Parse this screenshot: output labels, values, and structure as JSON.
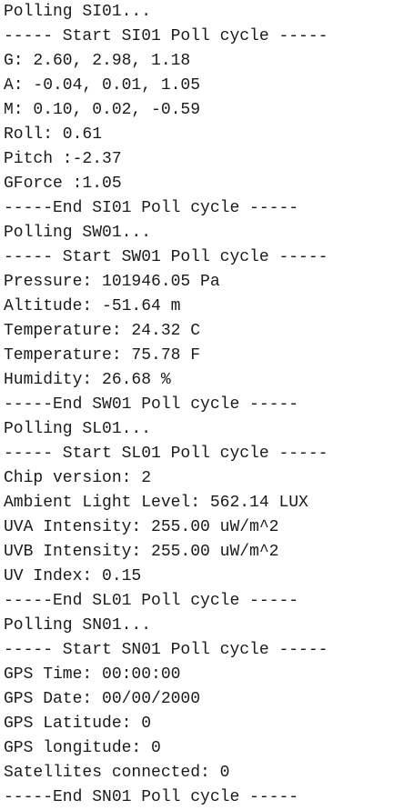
{
  "serial_monitor": {
    "lines": [
      "Polling SI01...",
      "----- Start SI01 Poll cycle -----",
      "G: 2.60, 2.98, 1.18",
      "A: -0.04, 0.01, 1.05",
      "M: 0.10, 0.02, -0.59",
      "Roll: 0.61",
      "Pitch :-2.37",
      "GForce :1.05",
      "-----End SI01 Poll cycle -----",
      "Polling SW01...",
      "----- Start SW01 Poll cycle -----",
      "Pressure: 101946.05 Pa",
      "Altitude: -51.64 m",
      "Temperature: 24.32 C",
      "Temperature: 75.78 F",
      "Humidity: 26.68 %",
      "-----End SW01 Poll cycle -----",
      "Polling SL01...",
      "----- Start SL01 Poll cycle -----",
      "Chip version: 2",
      "Ambient Light Level: 562.14 LUX",
      "UVA Intensity: 255.00 uW/m^2",
      "UVB Intensity: 255.00 uW/m^2",
      "UV Index: 0.15",
      "-----End SL01 Poll cycle -----",
      "Polling SN01...",
      "----- Start SN01 Poll cycle -----",
      "GPS Time: 00:00:00",
      "GPS Date: 00/00/2000",
      "GPS Latitude: 0",
      "GPS longitude: 0",
      "Satellites connected: 0",
      "-----End SN01 Poll cycle -----"
    ]
  }
}
